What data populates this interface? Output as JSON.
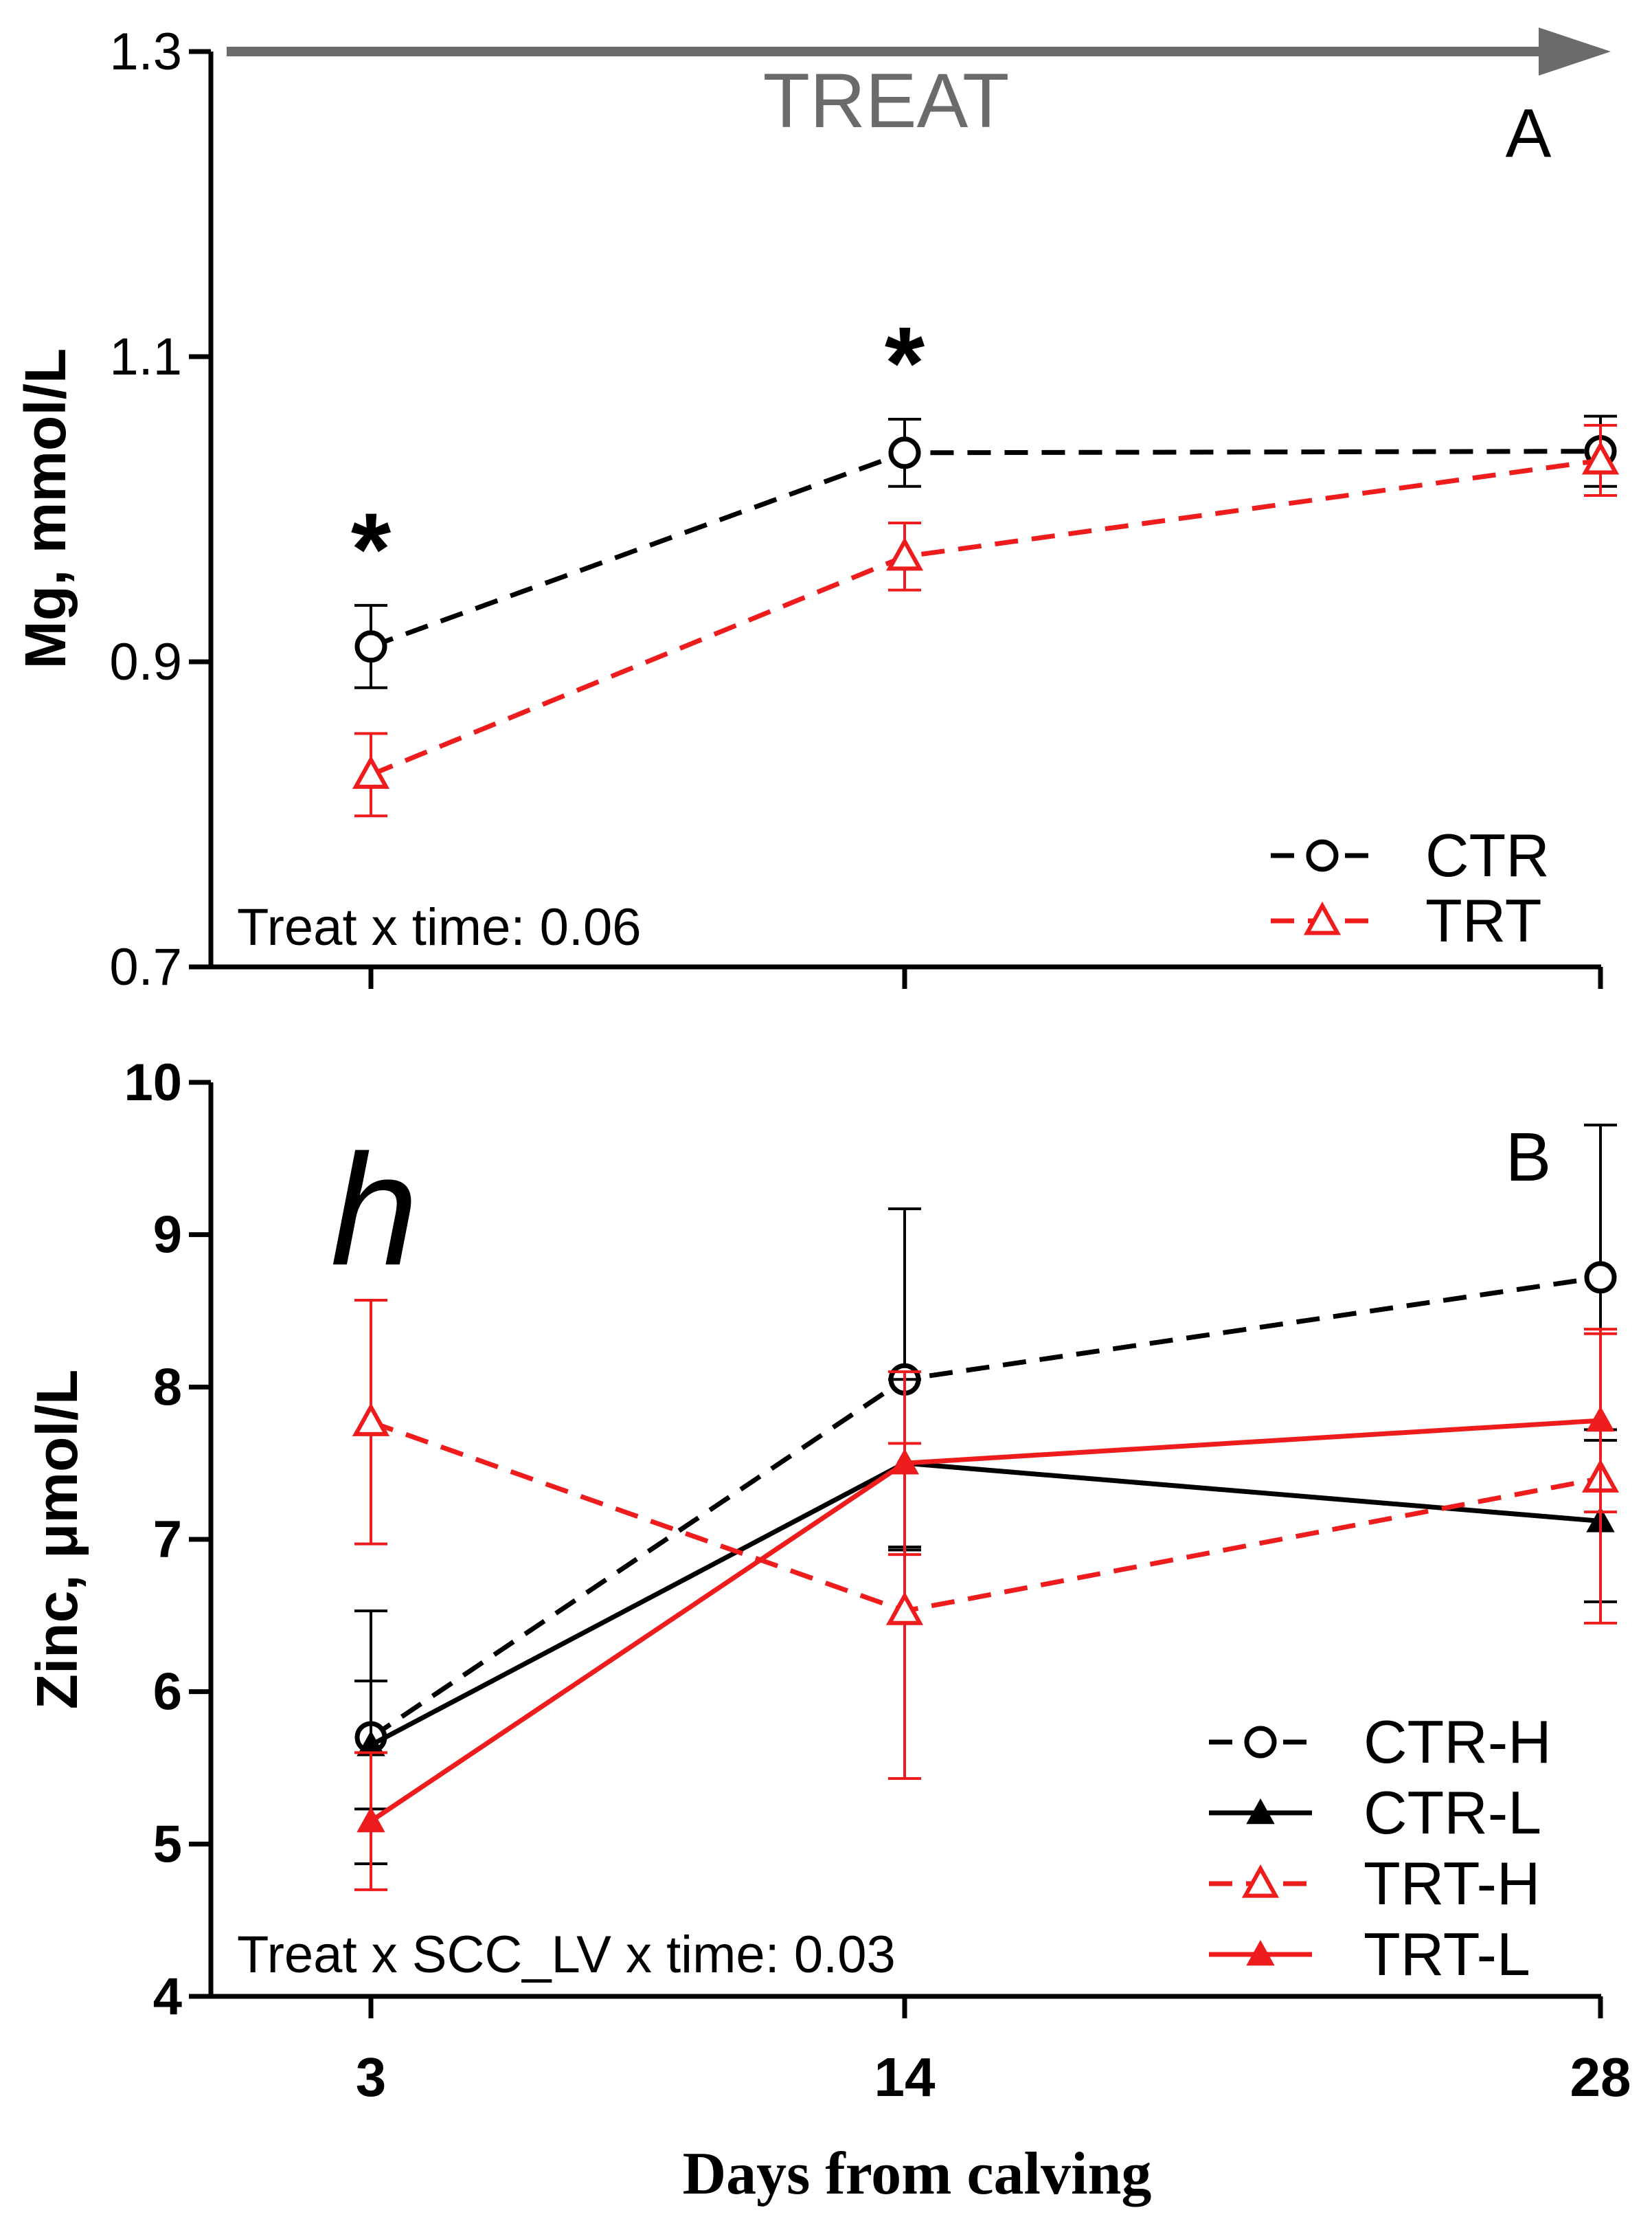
{
  "treat_banner": "TREAT",
  "x_axis": {
    "label": "Days from calving",
    "ticks": [
      "3",
      "14",
      "28"
    ],
    "values": [
      3,
      14,
      28
    ]
  },
  "chart_data": [
    {
      "type": "line",
      "panel": "A",
      "ylabel": "Mg, mmol/L",
      "ylim": [
        0.7,
        1.3
      ],
      "yticks": [
        "0.7",
        "0.9",
        "1.1",
        "1.3"
      ],
      "x": [
        3,
        14,
        28
      ],
      "annotation": "Treat x time: 0.06",
      "significance_marks": [
        {
          "x": 3,
          "text": "*"
        },
        {
          "x": 14,
          "text": "*"
        }
      ],
      "series": [
        {
          "name": "CTR",
          "values": [
            0.91,
            1.037,
            1.038
          ],
          "errors": [
            0.027,
            0.022,
            0.023
          ],
          "color": "#000000",
          "dash": "dashed",
          "marker": "circle-open"
        },
        {
          "name": "TRT",
          "values": [
            0.826,
            0.969,
            1.032
          ],
          "errors": [
            0.027,
            0.022,
            0.023
          ],
          "color": "#ee1c1c",
          "dash": "dashed",
          "marker": "triangle-open"
        }
      ]
    },
    {
      "type": "line",
      "panel": "B",
      "panel_mark": "h",
      "ylabel": "Zinc, μmol/L",
      "ylim": [
        4,
        10
      ],
      "yticks": [
        "4",
        "5",
        "6",
        "7",
        "8",
        "9",
        "10"
      ],
      "x": [
        3,
        14,
        28
      ],
      "annotation": "Treat x SCC_LV x time: 0.03",
      "series": [
        {
          "name": "CTR-H",
          "values": [
            5.7,
            8.05,
            8.72
          ],
          "errors": [
            0.83,
            1.12,
            1.0
          ],
          "color": "#000000",
          "dash": "dashed",
          "marker": "circle-open"
        },
        {
          "name": "CTR-L",
          "values": [
            5.65,
            7.5,
            7.12
          ],
          "errors": [
            0.42,
            0.55,
            0.53
          ],
          "color": "#000000",
          "dash": "solid",
          "marker": "triangle-filled"
        },
        {
          "name": "TRT-H",
          "values": [
            7.77,
            6.53,
            7.4
          ],
          "errors": [
            0.8,
            1.1,
            0.95
          ],
          "color": "#ee1c1c",
          "dash": "dashed",
          "marker": "triangle-open"
        },
        {
          "name": "TRT-L",
          "values": [
            5.15,
            7.5,
            7.78
          ],
          "errors": [
            0.45,
            0.6,
            0.6
          ],
          "color": "#ee1c1c",
          "dash": "solid",
          "marker": "triangle-filled"
        }
      ]
    }
  ]
}
